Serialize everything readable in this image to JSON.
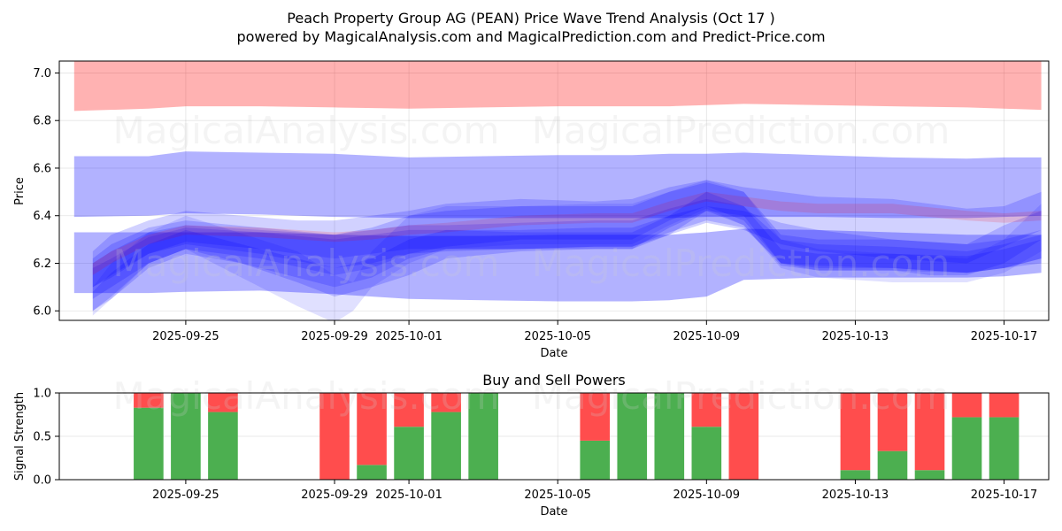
{
  "title": "Peach Property Group AG (PEAN) Price Wave Trend Analysis (Oct 17 )",
  "subtitle": "powered by MagicalAnalysis.com and MagicalPrediction.com and Predict-Price.com",
  "watermarks": [
    "MagicalAnalysis.com",
    "MagicalPrediction.com"
  ],
  "colors": {
    "red_band": "#ff0000",
    "blue_band": "#0000ff",
    "buy": "#4caf50",
    "sell": "#ff4d4d"
  },
  "chart_data": [
    {
      "type": "area",
      "name": "price-wave",
      "xlabel": "Date",
      "ylabel": "Price",
      "ylim": [
        5.96,
        7.05
      ],
      "xlim": [
        "2025-09-21.6",
        "2025-10-18.2"
      ],
      "x_ticks": [
        "2025-09-25",
        "2025-09-29",
        "2025-10-01",
        "2025-10-05",
        "2025-10-09",
        "2025-10-13",
        "2025-10-17"
      ],
      "y_ticks": [
        6.0,
        6.2,
        6.4,
        6.6,
        6.8,
        7.0
      ],
      "y_tick_labels": [
        "6.0",
        "6.2",
        "6.4",
        "6.6",
        "6.8",
        "7.0"
      ],
      "grid": true,
      "bands": [
        {
          "color": "red",
          "opacity": 0.3,
          "x": [
            0,
            2,
            3,
            5,
            7,
            9,
            11,
            13,
            15,
            16,
            17,
            18,
            20,
            22,
            24,
            25,
            26
          ],
          "upper": [
            7.05,
            7.05,
            7.05,
            7.05,
            7.05,
            7.05,
            7.05,
            7.05,
            7.05,
            7.05,
            7.05,
            7.05,
            7.05,
            7.05,
            7.05,
            7.05,
            7.05
          ],
          "lower": [
            6.84,
            6.85,
            6.86,
            6.86,
            6.855,
            6.85,
            6.855,
            6.86,
            6.86,
            6.86,
            6.865,
            6.87,
            6.865,
            6.86,
            6.855,
            6.85,
            6.845
          ]
        },
        {
          "color": "blue",
          "opacity": 0.3,
          "x": [
            0,
            2,
            3,
            5,
            7,
            9,
            11,
            13,
            15,
            16,
            17,
            18,
            20,
            22,
            24,
            25,
            26
          ],
          "upper": [
            6.65,
            6.65,
            6.67,
            6.665,
            6.66,
            6.645,
            6.65,
            6.655,
            6.655,
            6.66,
            6.66,
            6.665,
            6.655,
            6.645,
            6.64,
            6.645,
            6.645
          ],
          "lower": [
            6.395,
            6.4,
            6.41,
            6.405,
            6.395,
            6.39,
            6.39,
            6.39,
            6.39,
            6.39,
            6.395,
            6.395,
            6.395,
            6.39,
            6.39,
            6.395,
            6.4
          ]
        },
        {
          "color": "blue",
          "opacity": 0.3,
          "x": [
            0,
            2,
            3,
            5,
            7,
            9,
            11,
            13,
            15,
            16,
            17,
            18,
            20,
            22,
            24,
            25,
            26
          ],
          "upper": [
            6.33,
            6.33,
            6.33,
            6.33,
            6.32,
            6.315,
            6.315,
            6.32,
            6.32,
            6.32,
            6.33,
            6.345,
            6.34,
            6.33,
            6.32,
            6.32,
            6.32
          ],
          "lower": [
            6.075,
            6.075,
            6.08,
            6.085,
            6.07,
            6.05,
            6.045,
            6.04,
            6.04,
            6.045,
            6.06,
            6.13,
            6.14,
            6.14,
            6.14,
            6.145,
            6.16
          ]
        },
        {
          "color": "blue",
          "opacity": 0.18,
          "x": [
            0.5,
            1,
            2,
            3,
            4.5,
            6,
            7,
            8,
            9,
            10,
            12,
            14,
            15,
            16,
            17,
            18,
            19,
            20,
            22,
            23,
            24,
            25,
            26
          ],
          "upper": [
            6.25,
            6.32,
            6.38,
            6.42,
            6.4,
            6.38,
            6.38,
            6.4,
            6.42,
            6.45,
            6.47,
            6.46,
            6.47,
            6.52,
            6.55,
            6.52,
            6.5,
            6.48,
            6.47,
            6.45,
            6.43,
            6.44,
            6.5
          ],
          "lower": [
            6.0,
            6.05,
            6.18,
            6.24,
            6.2,
            6.12,
            6.06,
            6.1,
            6.15,
            6.22,
            6.25,
            6.26,
            6.26,
            6.35,
            6.42,
            6.4,
            6.2,
            6.17,
            6.17,
            6.15,
            6.15,
            6.2,
            6.3
          ]
        },
        {
          "color": "blue",
          "opacity": 0.18,
          "x": [
            0.5,
            1,
            2,
            3,
            5,
            7,
            8,
            9,
            10,
            12,
            14,
            15,
            16,
            17,
            18,
            19,
            20,
            22,
            24,
            25,
            26
          ],
          "upper": [
            6.22,
            6.28,
            6.35,
            6.38,
            6.35,
            6.32,
            6.35,
            6.4,
            6.42,
            6.44,
            6.44,
            6.44,
            6.5,
            6.54,
            6.5,
            6.32,
            6.3,
            6.3,
            6.28,
            6.3,
            6.34
          ],
          "lower": [
            6.05,
            6.1,
            6.2,
            6.26,
            6.22,
            6.15,
            6.18,
            6.24,
            6.27,
            6.3,
            6.3,
            6.3,
            6.38,
            6.44,
            6.38,
            6.2,
            6.18,
            6.18,
            6.16,
            6.18,
            6.2
          ]
        },
        {
          "color": "blue",
          "opacity": 0.18,
          "x": [
            0.5,
            1,
            2,
            3,
            5,
            7,
            8,
            9,
            10,
            12,
            14,
            15,
            16,
            17,
            18,
            19,
            20,
            22,
            24,
            25,
            26
          ],
          "upper": [
            6.2,
            6.25,
            6.33,
            6.36,
            6.34,
            6.32,
            6.34,
            6.36,
            6.36,
            6.37,
            6.38,
            6.38,
            6.43,
            6.47,
            6.44,
            6.3,
            6.28,
            6.27,
            6.25,
            6.28,
            6.32
          ],
          "lower": [
            6.1,
            6.15,
            6.24,
            6.28,
            6.24,
            6.18,
            6.2,
            6.24,
            6.25,
            6.26,
            6.27,
            6.27,
            6.33,
            6.38,
            6.35,
            6.2,
            6.19,
            6.18,
            6.16,
            6.18,
            6.22
          ]
        },
        {
          "color": "blue",
          "opacity": 0.18,
          "x": [
            0.5,
            1,
            2,
            3,
            5,
            7,
            8,
            9,
            10,
            12,
            14,
            15,
            16,
            17,
            18,
            19,
            20,
            22,
            24,
            25,
            26
          ],
          "upper": [
            6.18,
            6.22,
            6.31,
            6.35,
            6.33,
            6.3,
            6.32,
            6.34,
            6.34,
            6.34,
            6.35,
            6.35,
            6.4,
            6.44,
            6.42,
            6.37,
            6.34,
            6.3,
            6.28,
            6.36,
            6.42
          ],
          "lower": [
            6.1,
            6.14,
            6.24,
            6.29,
            6.26,
            6.22,
            6.24,
            6.26,
            6.26,
            6.26,
            6.27,
            6.27,
            6.32,
            6.37,
            6.34,
            6.28,
            6.25,
            6.22,
            6.2,
            6.27,
            6.34
          ]
        },
        {
          "color": "red",
          "opacity": 0.14,
          "x": [
            0.5,
            1,
            2,
            3,
            5,
            7,
            8,
            9,
            10,
            12,
            14,
            15,
            16,
            17,
            18,
            19,
            20,
            22,
            24,
            25,
            26
          ],
          "upper": [
            6.2,
            6.25,
            6.32,
            6.36,
            6.35,
            6.33,
            6.34,
            6.36,
            6.37,
            6.4,
            6.41,
            6.41,
            6.46,
            6.5,
            6.48,
            6.46,
            6.45,
            6.45,
            6.42,
            6.41,
            6.42
          ],
          "lower": [
            6.15,
            6.2,
            6.28,
            6.32,
            6.31,
            6.29,
            6.3,
            6.32,
            6.33,
            6.36,
            6.37,
            6.37,
            6.42,
            6.46,
            6.44,
            6.42,
            6.41,
            6.41,
            6.38,
            6.37,
            6.38
          ]
        },
        {
          "color": "blue",
          "opacity": 0.12,
          "x": [
            0.5,
            1,
            2,
            3,
            5,
            6,
            7,
            7.5,
            8,
            9,
            10,
            12,
            14,
            15,
            16,
            17,
            18,
            19,
            20,
            22,
            24,
            25,
            26
          ],
          "upper": [
            6.1,
            6.2,
            6.33,
            6.4,
            6.3,
            6.25,
            6.15,
            6.12,
            6.25,
            6.4,
            6.44,
            6.44,
            6.45,
            6.45,
            6.5,
            6.55,
            6.5,
            6.3,
            6.26,
            6.24,
            6.22,
            6.3,
            6.45
          ],
          "lower": [
            5.98,
            6.05,
            6.2,
            6.26,
            6.1,
            6.02,
            5.95,
            6.0,
            6.1,
            6.2,
            6.26,
            6.28,
            6.28,
            6.28,
            6.36,
            6.43,
            6.36,
            6.18,
            6.14,
            6.12,
            6.12,
            6.16,
            6.25
          ]
        },
        {
          "color": "blue",
          "opacity": 0.18,
          "x": [
            0.5,
            1,
            2,
            3,
            5,
            7,
            8,
            9,
            10,
            12,
            14,
            15,
            16,
            17,
            18,
            19,
            20,
            22,
            24,
            25,
            26
          ],
          "upper": [
            6.08,
            6.16,
            6.28,
            6.34,
            6.26,
            6.18,
            6.22,
            6.3,
            6.34,
            6.33,
            6.33,
            6.33,
            6.4,
            6.5,
            6.44,
            6.26,
            6.24,
            6.24,
            6.23,
            6.26,
            6.3
          ],
          "lower": [
            6.0,
            6.06,
            6.2,
            6.26,
            6.18,
            6.1,
            6.14,
            6.22,
            6.26,
            6.26,
            6.26,
            6.26,
            6.32,
            6.42,
            6.36,
            6.19,
            6.17,
            6.17,
            6.16,
            6.18,
            6.22
          ]
        }
      ]
    },
    {
      "type": "bar",
      "name": "buy-sell-powers",
      "title": "Buy and Sell Powers",
      "xlabel": "Date",
      "ylabel": "Signal Strength",
      "ylim": [
        0,
        1.0
      ],
      "y_ticks": [
        0.0,
        0.5,
        1.0
      ],
      "y_tick_labels": [
        "0.0",
        "0.5",
        "1.0"
      ],
      "x_ticks": [
        "2025-09-25",
        "2025-09-29",
        "2025-10-01",
        "2025-10-05",
        "2025-10-09",
        "2025-10-13",
        "2025-10-17"
      ],
      "grid": true,
      "categories": [
        "2025-09-24",
        "2025-09-25",
        "2025-09-26",
        "2025-09-29",
        "2025-09-30",
        "2025-10-01",
        "2025-10-02",
        "2025-10-03",
        "2025-10-06",
        "2025-10-07",
        "2025-10-08",
        "2025-10-09",
        "2025-10-10",
        "2025-10-13",
        "2025-10-14",
        "2025-10-15",
        "2025-10-16",
        "2025-10-17"
      ],
      "series": [
        {
          "name": "Buy",
          "values": [
            0.83,
            1.0,
            0.78,
            0.0,
            0.17,
            0.61,
            0.78,
            1.0,
            0.45,
            1.0,
            1.0,
            0.61,
            0.0,
            0.11,
            0.33,
            0.11,
            0.72,
            0.72
          ]
        },
        {
          "name": "Sell",
          "values": [
            0.17,
            0.0,
            0.22,
            1.0,
            0.83,
            0.39,
            0.22,
            0.0,
            0.55,
            0.0,
            0.0,
            0.39,
            1.0,
            0.89,
            0.67,
            0.89,
            0.28,
            0.28
          ]
        }
      ]
    }
  ]
}
